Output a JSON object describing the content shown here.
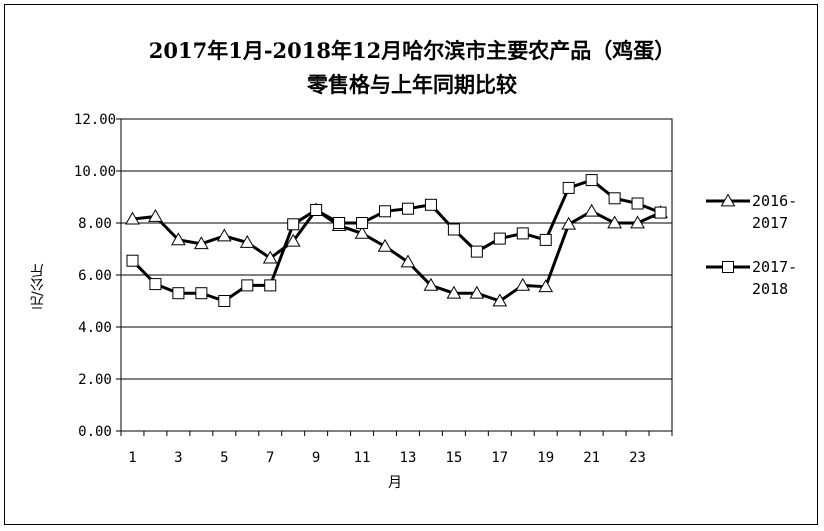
{
  "chart_data": {
    "type": "line",
    "title": "2017年1月-2018年12月哈尔滨市主要农产品（鸡蛋）",
    "subtitle": "零售格与上年同期比较",
    "xlabel": "月",
    "ylabel": "元/公斤",
    "x": [
      1,
      2,
      3,
      4,
      5,
      6,
      7,
      8,
      9,
      10,
      11,
      12,
      13,
      14,
      15,
      16,
      17,
      18,
      19,
      20,
      21,
      22,
      23,
      24
    ],
    "x_tick_labels": [
      "1",
      "3",
      "5",
      "7",
      "9",
      "11",
      "13",
      "15",
      "17",
      "19",
      "21",
      "23"
    ],
    "y_tick_labels": [
      "0.00",
      "2.00",
      "4.00",
      "6.00",
      "8.00",
      "10.00",
      "12.00"
    ],
    "ylim": [
      0,
      12
    ],
    "grid": "horizontal",
    "legend_position": "right",
    "series": [
      {
        "name_line1": "2016-",
        "name_line2": "2017",
        "marker": "triangle",
        "values": [
          8.15,
          8.25,
          7.35,
          7.2,
          7.5,
          7.25,
          6.65,
          7.3,
          8.5,
          7.9,
          7.6,
          7.1,
          6.5,
          5.6,
          5.3,
          5.3,
          5.0,
          5.6,
          5.55,
          7.95,
          8.45,
          8.0,
          8.0,
          8.4
        ]
      },
      {
        "name_line1": "2017-",
        "name_line2": "2018",
        "marker": "square",
        "values": [
          6.55,
          5.65,
          5.3,
          5.3,
          5.0,
          5.6,
          5.6,
          7.95,
          8.5,
          8.0,
          8.0,
          8.45,
          8.55,
          8.7,
          7.75,
          6.9,
          7.4,
          7.6,
          7.35,
          9.35,
          9.65,
          8.95,
          8.75,
          8.4
        ]
      }
    ]
  }
}
